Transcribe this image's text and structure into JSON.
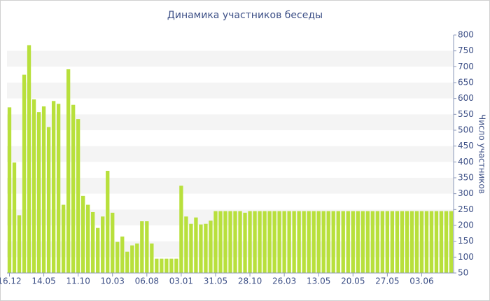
{
  "chart_data": {
    "type": "bar",
    "title": "Динамика участников беседы",
    "y_axis_label": "Число участников",
    "color": "#b8e03c",
    "banded": true,
    "ylim": [
      50,
      800
    ],
    "yticks": [
      50,
      100,
      150,
      200,
      250,
      300,
      350,
      400,
      450,
      500,
      550,
      600,
      650,
      700,
      750,
      800
    ],
    "categories": [
      "16.12",
      null,
      null,
      null,
      null,
      null,
      null,
      "14.05",
      null,
      null,
      null,
      null,
      null,
      null,
      "11.10",
      null,
      null,
      null,
      null,
      null,
      null,
      "10.03",
      null,
      null,
      null,
      null,
      null,
      null,
      "06.08",
      null,
      null,
      null,
      null,
      null,
      null,
      "03.01",
      null,
      null,
      null,
      null,
      null,
      null,
      "31.05",
      null,
      null,
      null,
      null,
      null,
      null,
      "28.10",
      null,
      null,
      null,
      null,
      null,
      null,
      "26.03",
      null,
      null,
      null,
      null,
      null,
      null,
      "13.05",
      null,
      null,
      null,
      null,
      null,
      null,
      "20.05",
      null,
      null,
      null,
      null,
      null,
      null,
      "27.05",
      null,
      null,
      null,
      null,
      null,
      null,
      "03.06",
      null,
      null,
      null,
      null,
      null,
      null
    ],
    "values": [
      572,
      398,
      232,
      675,
      768,
      597,
      557,
      575,
      510,
      592,
      583,
      265,
      692,
      580,
      535,
      293,
      265,
      242,
      192,
      228,
      372,
      240,
      148,
      165,
      117,
      137,
      143,
      213,
      213,
      143,
      95,
      95,
      95,
      95,
      95,
      325,
      228,
      205,
      225,
      203,
      205,
      215,
      245,
      245,
      245,
      245,
      245,
      245,
      240,
      245,
      245,
      245,
      245,
      245,
      245,
      245,
      245,
      245,
      245,
      245,
      245,
      245,
      245,
      245,
      245,
      245,
      245,
      245,
      245,
      245,
      245,
      245,
      245,
      245,
      245,
      245,
      245,
      245,
      245,
      245,
      245,
      245,
      245,
      245,
      245,
      245,
      245,
      245,
      245,
      245,
      245
    ]
  }
}
